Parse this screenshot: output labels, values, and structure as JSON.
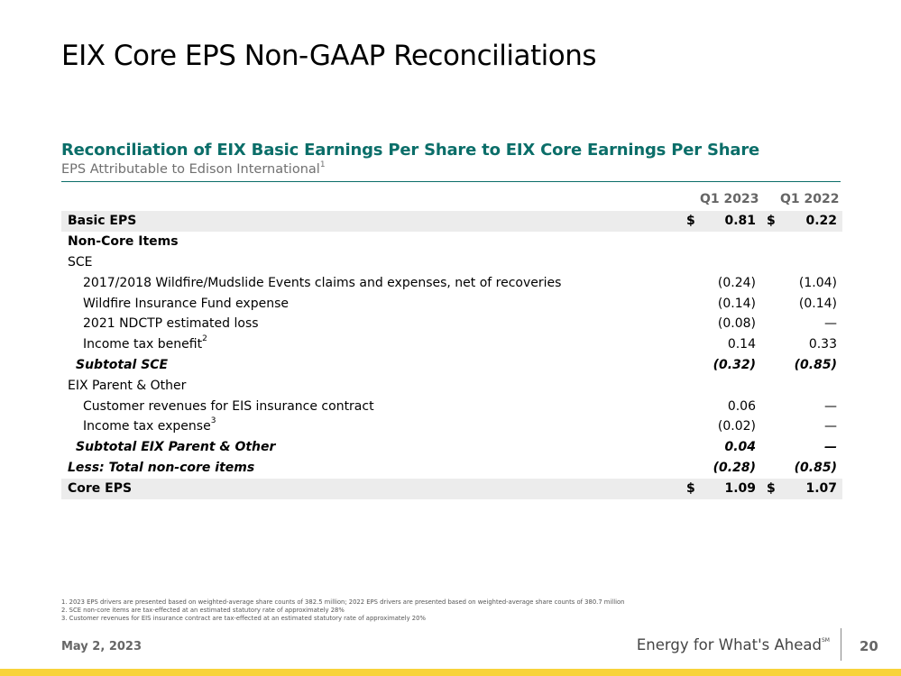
{
  "title": "EIX Core EPS Non-GAAP Reconciliations",
  "heading": "Reconciliation of EIX Basic Earnings Per Share to EIX Core Earnings Per Share",
  "subheading": "EPS Attributable to Edison International",
  "subheading_note": "1",
  "columns": [
    "Q1 2023",
    "Q1 2022"
  ],
  "rows": [
    {
      "label": "Basic EPS",
      "v1": "0.81",
      "v2": "0.22",
      "d1": "$",
      "d2": "$"
    },
    {
      "label": "Non-Core Items",
      "v1": "",
      "v2": ""
    },
    {
      "label": "SCE",
      "v1": "",
      "v2": ""
    },
    {
      "label": "2017/2018 Wildfire/Mudslide Events claims and expenses, net of recoveries",
      "v1": "(0.24)",
      "v2": "(1.04)"
    },
    {
      "label": "Wildfire Insurance Fund expense",
      "v1": "(0.14)",
      "v2": "(0.14)"
    },
    {
      "label": "2021 NDCTP estimated loss",
      "v1": "(0.08)",
      "v2": "—"
    },
    {
      "label": "Income tax benefit",
      "note": "2",
      "v1": "0.14",
      "v2": "0.33"
    },
    {
      "label": "Subtotal SCE",
      "v1": "(0.32)",
      "v2": "(0.85)"
    },
    {
      "label": "EIX Parent & Other",
      "v1": "",
      "v2": ""
    },
    {
      "label": "Customer revenues for EIS insurance contract",
      "v1": "0.06",
      "v2": "—"
    },
    {
      "label": "Income tax expense",
      "note": "3",
      "v1": "(0.02)",
      "v2": "—"
    },
    {
      "label": "Subtotal EIX Parent & Other",
      "v1": "0.04",
      "v2": "—"
    },
    {
      "label": "Less: Total non-core items",
      "v1": "(0.28)",
      "v2": "(0.85)"
    },
    {
      "label": "Core EPS",
      "v1": "1.09",
      "v2": "1.07",
      "d1": "$",
      "d2": "$"
    }
  ],
  "footnotes": [
    "1.   2023 EPS drivers are presented based on weighted-average share counts of 382.5 million; 2022 EPS drivers are presented based on weighted-average share counts of 380.7 million",
    "2.   SCE non-core items are tax-effected at an estimated statutory rate of approximately 28%",
    "3.   Customer revenues for EIS insurance contract are tax-effected at an estimated statutory rate of approximately 20%"
  ],
  "footer": {
    "date": "May 2, 2023",
    "tagline": "Energy for What's Ahead",
    "tagline_mark": "SM",
    "page": "20"
  },
  "colors": {
    "heading": "#0b6e69",
    "accent_bar": "#f8d33a",
    "row_shade": "#ececec"
  }
}
